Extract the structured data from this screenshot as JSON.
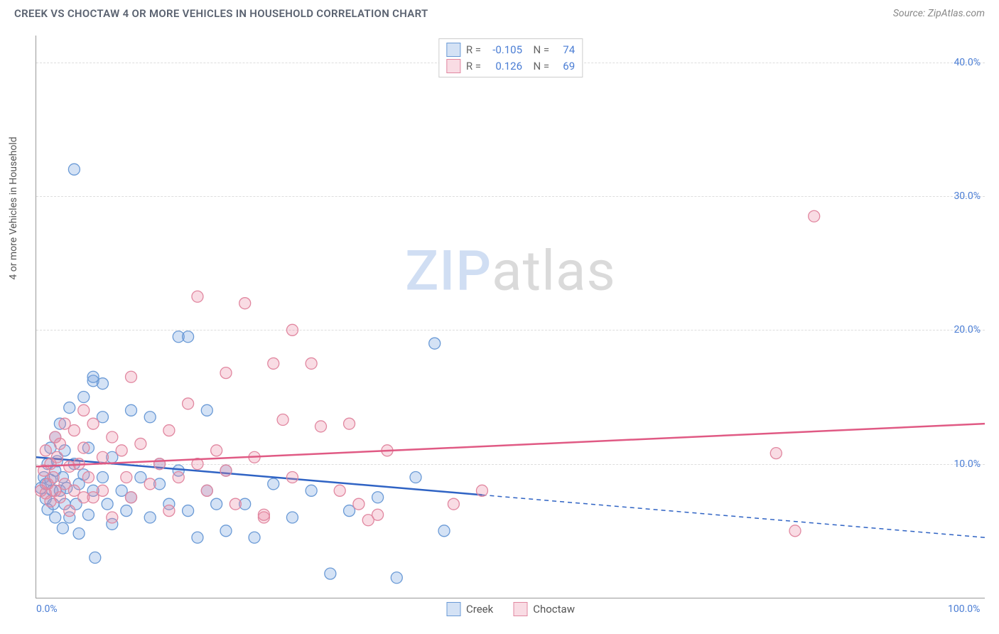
{
  "title": "CREEK VS CHOCTAW 4 OR MORE VEHICLES IN HOUSEHOLD CORRELATION CHART",
  "source": "Source: ZipAtlas.com",
  "watermark": {
    "part1": "ZIP",
    "part2": "atlas"
  },
  "ylabel": "4 or more Vehicles in Household",
  "chart": {
    "type": "scatter",
    "xlim": [
      0,
      100
    ],
    "ylim": [
      0,
      42
    ],
    "x_ticks": [
      {
        "value": 0,
        "label": "0.0%"
      },
      {
        "value": 100,
        "label": "100.0%"
      }
    ],
    "y_ticks": [
      {
        "value": 10,
        "label": "10.0%"
      },
      {
        "value": 20,
        "label": "20.0%"
      },
      {
        "value": 30,
        "label": "30.0%"
      },
      {
        "value": 40,
        "label": "40.0%"
      }
    ],
    "grid_dash": true,
    "background": "#ffffff",
    "marker_radius": 8,
    "marker_stroke_width": 1.3,
    "regression_line_width": 2.5,
    "series": [
      {
        "name": "Creek",
        "fill": "rgba(120,165,225,0.32)",
        "stroke": "#6a9ad6",
        "line_color": "#2f63c4",
        "R": "-0.105",
        "N": "74",
        "regression": {
          "x1": 0,
          "y1": 10.5,
          "x2": 100,
          "y2": 4.5,
          "solid_until_x": 47
        },
        "points": [
          [
            0.5,
            8.2
          ],
          [
            0.8,
            9.0
          ],
          [
            1.0,
            7.4
          ],
          [
            1.0,
            8.5
          ],
          [
            1.2,
            10.0
          ],
          [
            1.2,
            6.6
          ],
          [
            1.5,
            8.8
          ],
          [
            1.5,
            11.2
          ],
          [
            1.7,
            8.0
          ],
          [
            1.8,
            7.0
          ],
          [
            2.0,
            9.5
          ],
          [
            2.0,
            12.0
          ],
          [
            2.0,
            6.0
          ],
          [
            2.2,
            10.2
          ],
          [
            2.5,
            8.0
          ],
          [
            2.5,
            13.0
          ],
          [
            2.8,
            9.0
          ],
          [
            2.8,
            5.2
          ],
          [
            3.0,
            11.0
          ],
          [
            3.0,
            7.0
          ],
          [
            3.2,
            8.2
          ],
          [
            3.5,
            14.2
          ],
          [
            3.5,
            6.0
          ],
          [
            4.0,
            10.0
          ],
          [
            4.0,
            32.0
          ],
          [
            4.2,
            7.0
          ],
          [
            4.5,
            8.5
          ],
          [
            4.5,
            4.8
          ],
          [
            5.0,
            9.2
          ],
          [
            5.0,
            15.0
          ],
          [
            5.5,
            6.2
          ],
          [
            5.5,
            11.2
          ],
          [
            6.0,
            8.0
          ],
          [
            6.0,
            16.2
          ],
          [
            6.0,
            16.5
          ],
          [
            6.2,
            3.0
          ],
          [
            7.0,
            9.0
          ],
          [
            7.0,
            13.5
          ],
          [
            7.0,
            16.0
          ],
          [
            7.5,
            7.0
          ],
          [
            8.0,
            5.5
          ],
          [
            8.0,
            10.5
          ],
          [
            9.0,
            8.0
          ],
          [
            9.5,
            6.5
          ],
          [
            10.0,
            7.5
          ],
          [
            10.0,
            14.0
          ],
          [
            11.0,
            9.0
          ],
          [
            12.0,
            6.0
          ],
          [
            12.0,
            13.5
          ],
          [
            13.0,
            10.0
          ],
          [
            13.0,
            8.5
          ],
          [
            14.0,
            7.0
          ],
          [
            15.0,
            19.5
          ],
          [
            15.0,
            9.5
          ],
          [
            16.0,
            6.5
          ],
          [
            16.0,
            19.5
          ],
          [
            17.0,
            4.5
          ],
          [
            18.0,
            8.0
          ],
          [
            18.0,
            14.0
          ],
          [
            19.0,
            7.0
          ],
          [
            20.0,
            5.0
          ],
          [
            20.0,
            9.5
          ],
          [
            22.0,
            7.0
          ],
          [
            23.0,
            4.5
          ],
          [
            25.0,
            8.5
          ],
          [
            27.0,
            6.0
          ],
          [
            29.0,
            8.0
          ],
          [
            31.0,
            1.8
          ],
          [
            33.0,
            6.5
          ],
          [
            36.0,
            7.5
          ],
          [
            38.0,
            1.5
          ],
          [
            40.0,
            9.0
          ],
          [
            42.0,
            19.0
          ],
          [
            43.0,
            5.0
          ]
        ]
      },
      {
        "name": "Choctaw",
        "fill": "rgba(235,140,165,0.30)",
        "stroke": "#e187a0",
        "line_color": "#e05a84",
        "R": "0.126",
        "N": "69",
        "regression": {
          "x1": 0,
          "y1": 9.8,
          "x2": 100,
          "y2": 13.0,
          "solid_until_x": 100
        },
        "points": [
          [
            0.5,
            8.0
          ],
          [
            0.8,
            9.5
          ],
          [
            1.0,
            7.8
          ],
          [
            1.0,
            11.0
          ],
          [
            1.2,
            8.5
          ],
          [
            1.5,
            10.0
          ],
          [
            1.5,
            7.2
          ],
          [
            1.8,
            9.0
          ],
          [
            2.0,
            12.0
          ],
          [
            2.0,
            8.0
          ],
          [
            2.2,
            10.5
          ],
          [
            2.5,
            7.5
          ],
          [
            2.5,
            11.5
          ],
          [
            3.0,
            8.5
          ],
          [
            3.0,
            13.0
          ],
          [
            3.5,
            9.8
          ],
          [
            3.5,
            6.5
          ],
          [
            4.0,
            12.5
          ],
          [
            4.0,
            8.0
          ],
          [
            4.5,
            10.0
          ],
          [
            5.0,
            7.5
          ],
          [
            5.0,
            14.0
          ],
          [
            5.0,
            11.2
          ],
          [
            5.5,
            9.0
          ],
          [
            6.0,
            13.0
          ],
          [
            6.0,
            7.5
          ],
          [
            7.0,
            10.5
          ],
          [
            7.0,
            8.0
          ],
          [
            8.0,
            12.0
          ],
          [
            8.0,
            6.0
          ],
          [
            9.0,
            11.0
          ],
          [
            9.5,
            9.0
          ],
          [
            10.0,
            16.5
          ],
          [
            10.0,
            7.5
          ],
          [
            11.0,
            11.5
          ],
          [
            12.0,
            8.5
          ],
          [
            13.0,
            10.0
          ],
          [
            14.0,
            12.5
          ],
          [
            14.0,
            6.5
          ],
          [
            15.0,
            9.0
          ],
          [
            16.0,
            14.5
          ],
          [
            17.0,
            10.0
          ],
          [
            17.0,
            22.5
          ],
          [
            18.0,
            8.0
          ],
          [
            19.0,
            11.0
          ],
          [
            20.0,
            16.8
          ],
          [
            20.0,
            9.5
          ],
          [
            21.0,
            7.0
          ],
          [
            22.0,
            22.0
          ],
          [
            23.0,
            10.5
          ],
          [
            24.0,
            6.0
          ],
          [
            24.0,
            6.2
          ],
          [
            25.0,
            17.5
          ],
          [
            26.0,
            13.3
          ],
          [
            27.0,
            9.0
          ],
          [
            27.0,
            20.0
          ],
          [
            29.0,
            17.5
          ],
          [
            30.0,
            12.8
          ],
          [
            32.0,
            8.0
          ],
          [
            33.0,
            13.0
          ],
          [
            34.0,
            7.0
          ],
          [
            35.0,
            5.8
          ],
          [
            36.0,
            6.2
          ],
          [
            37.0,
            11.0
          ],
          [
            44.0,
            7.0
          ],
          [
            47.0,
            8.0
          ],
          [
            78.0,
            10.8
          ],
          [
            80.0,
            5.0
          ],
          [
            82.0,
            28.5
          ]
        ]
      }
    ]
  },
  "legend": {
    "series1_label": "Creek",
    "series2_label": "Choctaw"
  }
}
